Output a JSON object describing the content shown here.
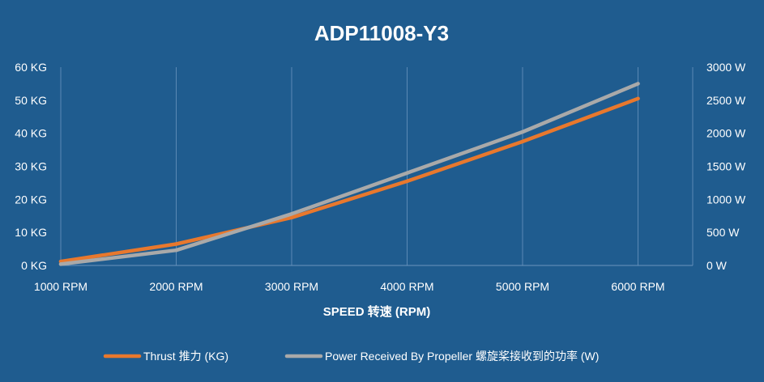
{
  "chart_data": {
    "type": "line",
    "title": "ADP11008-Y3",
    "xlabel": "SPEED 转速 (RPM)",
    "categories": [
      "1000 RPM",
      "2000 RPM",
      "3000 RPM",
      "4000 RPM",
      "5000 RPM",
      "6000 RPM"
    ],
    "y_left": {
      "ticks": [
        "0 KG",
        "10 KG",
        "20 KG",
        "30 KG",
        "40 KG",
        "50 KG",
        "60 KG"
      ],
      "ylim": [
        0,
        60
      ]
    },
    "y_right": {
      "ticks": [
        "0 W",
        "500 W",
        "1000 W",
        "1500 W",
        "2000 W",
        "2500 W",
        "3000 W"
      ],
      "ylim": [
        0,
        3000
      ]
    },
    "grid": "vertical",
    "legend_position": "bottom",
    "series": [
      {
        "name": "Thrust 推力 (KG)",
        "axis": "left",
        "color": "#e8782d",
        "values": [
          1.2,
          6.5,
          14.5,
          25.5,
          37.5,
          50.5
        ]
      },
      {
        "name": "Power Received By Propeller 螺旋桨接收到的功率 (W)",
        "axis": "right",
        "color": "#a9a9a9",
        "values": [
          20,
          230,
          780,
          1400,
          2020,
          2750
        ]
      }
    ]
  }
}
